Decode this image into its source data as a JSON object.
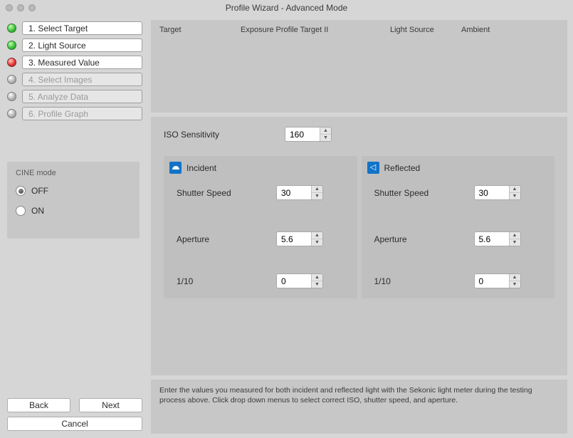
{
  "window": {
    "title": "Profile Wizard - Advanced Mode"
  },
  "steps": [
    {
      "label": "1. Select Target",
      "state": "done"
    },
    {
      "label": "2. Light Source",
      "state": "done"
    },
    {
      "label": "3. Measured Value",
      "state": "current"
    },
    {
      "label": "4. Select Images",
      "state": "pending"
    },
    {
      "label": "5. Analyze Data",
      "state": "pending"
    },
    {
      "label": "6. Profile Graph",
      "state": "pending"
    }
  ],
  "cine": {
    "title": "CINE mode",
    "options": {
      "off": "OFF",
      "on": "ON"
    },
    "value": "OFF"
  },
  "header": {
    "target_label": "Target",
    "exposure_profile_label": "Exposure Profile Target II",
    "light_source_label": "Light Source",
    "ambient_label": "Ambient"
  },
  "iso": {
    "label": "ISO Sensitivity",
    "value": "160"
  },
  "incident": {
    "title": "Incident",
    "shutter_label": "Shutter Speed",
    "shutter_value": "30",
    "aperture_label": "Aperture",
    "aperture_value": "5.6",
    "fraction_label": "1/10",
    "fraction_value": "0"
  },
  "reflected": {
    "title": "Reflected",
    "shutter_label": "Shutter Speed",
    "shutter_value": "30",
    "aperture_label": "Aperture",
    "aperture_value": "5.6",
    "fraction_label": "1/10",
    "fraction_value": "0"
  },
  "hint": "Enter the values you measured for both incident and reflected light with the Sekonic light meter during the testing process above. Click drop down menus to select correct ISO, shutter speed, and aperture.",
  "footer": {
    "back": "Back",
    "next": "Next",
    "cancel": "Cancel"
  },
  "colors": {
    "window_bg": "#d6d6d6",
    "panel_bg": "#c7c7c7",
    "subpanel_bg": "#bfbfbf",
    "accent_blue": "#1273c7",
    "step_done": "#3ec43e",
    "step_current": "#e53935",
    "step_pending": "#b5b5b5"
  }
}
